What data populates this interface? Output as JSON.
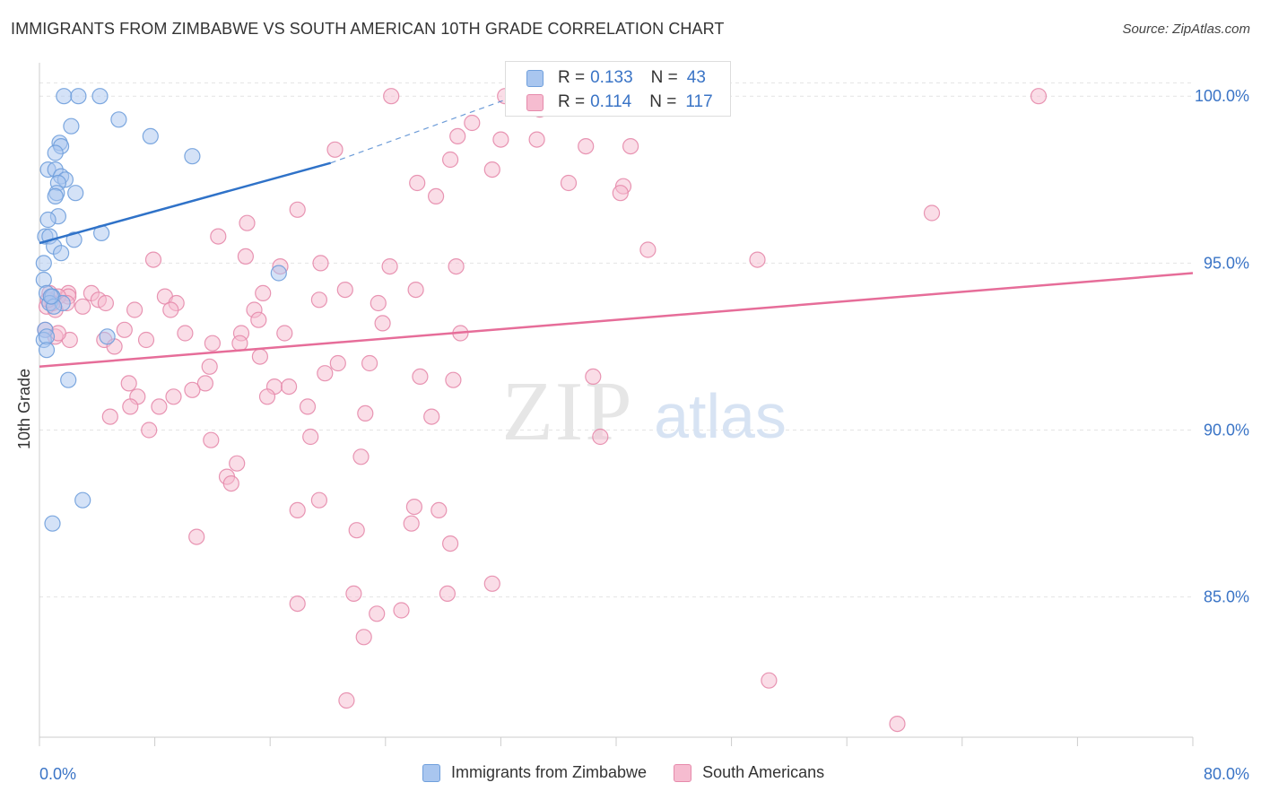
{
  "header": {
    "title": "IMMIGRANTS FROM ZIMBABWE VS SOUTH AMERICAN 10TH GRADE CORRELATION CHART",
    "source": "Source: ZipAtlas.com"
  },
  "watermark": {
    "zip": "ZIP",
    "atlas": "atlas"
  },
  "stats": {
    "row1": {
      "r_label": "R =",
      "r_value": "0.133",
      "n_label": "N =",
      "n_value": "43"
    },
    "row2": {
      "r_label": "R =",
      "r_value": "0.114",
      "n_label": "N =",
      "n_value": "117"
    }
  },
  "legend": {
    "series1": "Immigrants from Zimbabwe",
    "series2": "South Americans"
  },
  "colors": {
    "blue_fill": "#a9c6ef",
    "blue_stroke": "#6f9fdc",
    "blue_line": "#2f72c8",
    "pink_fill": "#f6bcd0",
    "pink_stroke": "#e68aab",
    "pink_line": "#e66d99",
    "tick_text": "#3a74c6",
    "grid": "#e4e4e4"
  },
  "chart_data": {
    "type": "scatter",
    "title": "IMMIGRANTS FROM ZIMBABWE VS SOUTH AMERICAN 10TH GRADE CORRELATION CHART",
    "xlabel": "",
    "ylabel": "10th Grade",
    "xlim": [
      0,
      80
    ],
    "ylim": [
      80.8,
      101.0
    ],
    "x_tick_labels": [
      "0.0%",
      "80.0%"
    ],
    "y_ticks": [
      85,
      90,
      95,
      100
    ],
    "y_tick_labels": [
      "85.0%",
      "90.0%",
      "95.0%",
      "100.0%"
    ],
    "grid": true,
    "legend_position": "bottom",
    "series": [
      {
        "name": "Immigrants from Zimbabwe",
        "color": "#a9c6ef",
        "points": [
          [
            1.7,
            100.0
          ],
          [
            2.7,
            100.0
          ],
          [
            4.2,
            100.0
          ],
          [
            5.5,
            99.3
          ],
          [
            2.2,
            99.1
          ],
          [
            7.7,
            98.8
          ],
          [
            1.4,
            98.6
          ],
          [
            1.5,
            98.5
          ],
          [
            1.1,
            98.3
          ],
          [
            10.6,
            98.2
          ],
          [
            0.6,
            97.8
          ],
          [
            1.1,
            97.8
          ],
          [
            1.5,
            97.6
          ],
          [
            1.8,
            97.5
          ],
          [
            1.3,
            97.4
          ],
          [
            1.2,
            97.1
          ],
          [
            1.1,
            97.0
          ],
          [
            2.5,
            97.1
          ],
          [
            1.3,
            96.4
          ],
          [
            0.6,
            96.3
          ],
          [
            4.3,
            95.9
          ],
          [
            0.4,
            95.8
          ],
          [
            0.7,
            95.8
          ],
          [
            2.4,
            95.7
          ],
          [
            1.0,
            95.5
          ],
          [
            1.5,
            95.3
          ],
          [
            0.3,
            95.0
          ],
          [
            16.6,
            94.7
          ],
          [
            0.3,
            94.5
          ],
          [
            0.5,
            94.1
          ],
          [
            0.9,
            94.0
          ],
          [
            0.7,
            93.8
          ],
          [
            1.6,
            93.8
          ],
          [
            1.0,
            93.7
          ],
          [
            0.4,
            93.0
          ],
          [
            4.7,
            92.8
          ],
          [
            0.3,
            92.7
          ],
          [
            0.5,
            92.8
          ],
          [
            0.5,
            92.4
          ],
          [
            2.0,
            91.5
          ],
          [
            3.0,
            87.9
          ],
          [
            0.9,
            87.2
          ],
          [
            0.8,
            94.0
          ]
        ]
      },
      {
        "name": "South Americans",
        "color": "#f6bcd0",
        "points": [
          [
            24.4,
            100.0
          ],
          [
            32.3,
            100.0
          ],
          [
            69.3,
            100.0
          ],
          [
            34.7,
            99.6
          ],
          [
            30.0,
            99.2
          ],
          [
            29.0,
            98.8
          ],
          [
            32.0,
            98.7
          ],
          [
            34.5,
            98.7
          ],
          [
            37.9,
            98.5
          ],
          [
            41.0,
            98.5
          ],
          [
            20.5,
            98.4
          ],
          [
            28.5,
            98.1
          ],
          [
            31.4,
            97.8
          ],
          [
            26.2,
            97.4
          ],
          [
            36.7,
            97.4
          ],
          [
            40.5,
            97.3
          ],
          [
            40.3,
            97.1
          ],
          [
            27.5,
            97.0
          ],
          [
            17.9,
            96.6
          ],
          [
            61.9,
            96.5
          ],
          [
            14.4,
            96.2
          ],
          [
            12.4,
            95.8
          ],
          [
            42.2,
            95.4
          ],
          [
            7.9,
            95.1
          ],
          [
            14.3,
            95.2
          ],
          [
            19.5,
            95.0
          ],
          [
            24.3,
            94.9
          ],
          [
            28.9,
            94.9
          ],
          [
            49.8,
            95.1
          ],
          [
            16.7,
            94.9
          ],
          [
            21.2,
            94.2
          ],
          [
            26.1,
            94.2
          ],
          [
            2.0,
            94.1
          ],
          [
            2.0,
            94.0
          ],
          [
            0.7,
            94.1
          ],
          [
            1.3,
            94.0
          ],
          [
            3.6,
            94.1
          ],
          [
            8.7,
            94.0
          ],
          [
            15.5,
            94.1
          ],
          [
            19.4,
            93.9
          ],
          [
            23.5,
            93.8
          ],
          [
            4.1,
            93.9
          ],
          [
            9.5,
            93.8
          ],
          [
            3.0,
            93.7
          ],
          [
            6.6,
            93.6
          ],
          [
            9.1,
            93.6
          ],
          [
            14.9,
            93.6
          ],
          [
            0.5,
            93.7
          ],
          [
            1.1,
            93.6
          ],
          [
            0.9,
            93.8
          ],
          [
            4.6,
            93.8
          ],
          [
            15.2,
            93.3
          ],
          [
            23.8,
            93.2
          ],
          [
            14.0,
            92.9
          ],
          [
            17.0,
            92.9
          ],
          [
            29.2,
            92.9
          ],
          [
            5.9,
            93.0
          ],
          [
            10.1,
            92.9
          ],
          [
            1.1,
            92.8
          ],
          [
            2.1,
            92.7
          ],
          [
            4.5,
            92.7
          ],
          [
            7.4,
            92.7
          ],
          [
            12.0,
            92.6
          ],
          [
            13.9,
            92.6
          ],
          [
            5.2,
            92.5
          ],
          [
            15.3,
            92.2
          ],
          [
            20.7,
            92.0
          ],
          [
            22.9,
            92.0
          ],
          [
            11.8,
            91.9
          ],
          [
            19.8,
            91.7
          ],
          [
            26.4,
            91.6
          ],
          [
            28.7,
            91.5
          ],
          [
            38.4,
            91.6
          ],
          [
            11.5,
            91.4
          ],
          [
            6.2,
            91.4
          ],
          [
            16.3,
            91.3
          ],
          [
            17.3,
            91.3
          ],
          [
            10.6,
            91.2
          ],
          [
            9.3,
            91.0
          ],
          [
            6.8,
            91.0
          ],
          [
            15.8,
            91.0
          ],
          [
            8.3,
            90.7
          ],
          [
            18.6,
            90.7
          ],
          [
            6.3,
            90.7
          ],
          [
            22.6,
            90.5
          ],
          [
            27.2,
            90.4
          ],
          [
            4.9,
            90.4
          ],
          [
            7.6,
            90.0
          ],
          [
            11.9,
            89.7
          ],
          [
            18.8,
            89.8
          ],
          [
            38.9,
            89.8
          ],
          [
            22.3,
            89.2
          ],
          [
            13.7,
            89.0
          ],
          [
            13.0,
            88.6
          ],
          [
            13.3,
            88.4
          ],
          [
            19.4,
            87.9
          ],
          [
            26.0,
            87.7
          ],
          [
            17.9,
            87.6
          ],
          [
            27.7,
            87.6
          ],
          [
            22.0,
            87.0
          ],
          [
            25.8,
            87.2
          ],
          [
            28.5,
            86.6
          ],
          [
            10.9,
            86.8
          ],
          [
            31.4,
            85.4
          ],
          [
            21.8,
            85.1
          ],
          [
            28.3,
            85.1
          ],
          [
            17.9,
            84.8
          ],
          [
            23.4,
            84.5
          ],
          [
            25.1,
            84.6
          ],
          [
            22.5,
            83.8
          ],
          [
            50.6,
            82.5
          ],
          [
            21.3,
            81.9
          ],
          [
            59.5,
            81.2
          ],
          [
            0.4,
            93.0
          ],
          [
            0.6,
            93.9
          ],
          [
            1.9,
            93.8
          ],
          [
            1.3,
            92.9
          ]
        ]
      }
    ],
    "trend_lines": [
      {
        "series": "Immigrants from Zimbabwe",
        "from": [
          0.0,
          95.6
        ],
        "solid_to": [
          20.2,
          98.0
        ],
        "dashed_to": [
          33.0,
          100.0
        ]
      },
      {
        "series": "South Americans",
        "from": [
          0.0,
          91.9
        ],
        "to": [
          80.0,
          94.7
        ]
      }
    ]
  }
}
